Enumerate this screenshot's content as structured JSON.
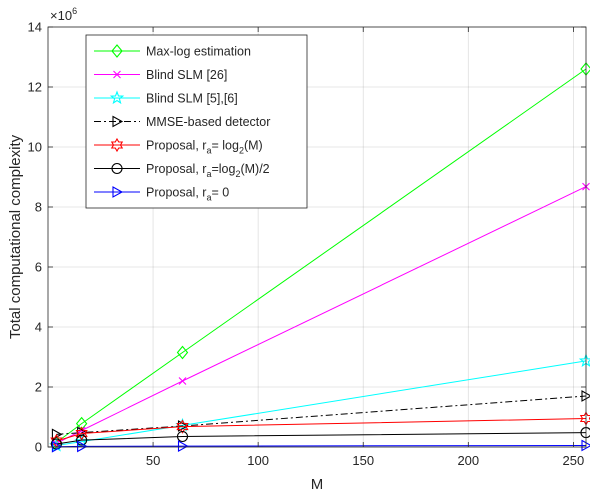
{
  "chart_data": {
    "type": "line",
    "xlabel": "M",
    "ylabel": "Total computational complexity",
    "y_exponent_label": "×10",
    "y_exponent_power": "6",
    "xlim": [
      0,
      256
    ],
    "ylim": [
      0,
      14
    ],
    "x_ticks": [
      50,
      100,
      150,
      200,
      250
    ],
    "y_ticks": [
      0,
      2,
      4,
      6,
      8,
      10,
      12,
      14
    ],
    "grid": true,
    "legend_position": "top-left",
    "x": [
      4,
      16,
      64,
      256
    ],
    "series": [
      {
        "name": "Max-log estimation",
        "legend": {
          "main": "Max-log estimation"
        },
        "color": "#00ff00",
        "marker": "diamond",
        "dash": "solid",
        "values": [
          0.15,
          0.78,
          3.15,
          12.6
        ]
      },
      {
        "name": "Blind SLM [26]",
        "legend": {
          "main": "Blind SLM [26]"
        },
        "color": "#ff00ff",
        "marker": "x",
        "dash": "solid",
        "values": [
          0.12,
          0.55,
          2.2,
          8.68
        ]
      },
      {
        "name": "Blind SLM [5],[6]",
        "legend": {
          "main": "Blind SLM [5],[6]"
        },
        "color": "#00ffff",
        "marker": "star",
        "dash": "solid",
        "values": [
          0.05,
          0.18,
          0.72,
          2.87
        ]
      },
      {
        "name": "MMSE-based detector",
        "legend": {
          "main": "MMSE-based detector"
        },
        "color": "#000000",
        "marker": "triangle-right",
        "dash": "dashdot",
        "values": [
          0.42,
          0.48,
          0.7,
          1.7
        ]
      },
      {
        "name": "Proposal, r_a= log_2(M)",
        "legend": {
          "main": "Proposal, r",
          "sub1": "a",
          "mid": "= log",
          "sub2": "2",
          "tail": "(M)"
        },
        "color": "#ff0000",
        "marker": "hexagram",
        "dash": "solid",
        "values": [
          0.2,
          0.45,
          0.68,
          0.95
        ]
      },
      {
        "name": "Proposal, r_a=log_2(M)/2",
        "legend": {
          "main": "Proposal, r",
          "sub1": "a",
          "mid": "=log",
          "sub2": "2",
          "tail": "(M)/2"
        },
        "color": "#000000",
        "marker": "circle",
        "dash": "solid",
        "values": [
          0.1,
          0.23,
          0.35,
          0.48
        ]
      },
      {
        "name": "Proposal, r_a= 0",
        "legend": {
          "main": "Proposal, r",
          "sub1": "a",
          "mid": "= 0",
          "sub2": "",
          "tail": ""
        },
        "color": "#0000ff",
        "marker": "triangle-right",
        "dash": "solid",
        "values": [
          0.01,
          0.02,
          0.03,
          0.05
        ]
      }
    ]
  }
}
